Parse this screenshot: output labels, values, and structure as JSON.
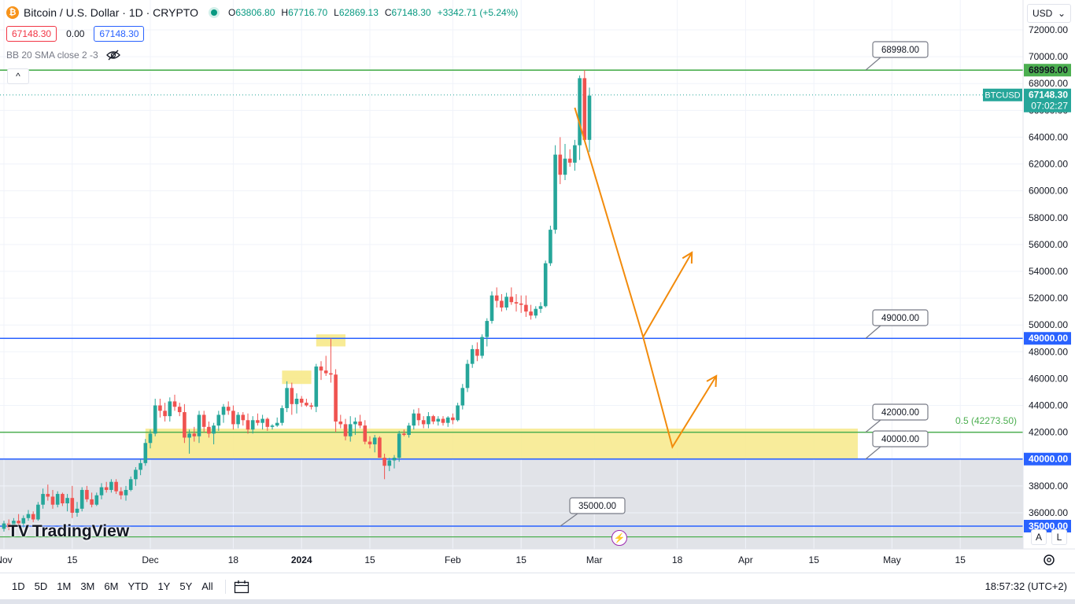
{
  "header": {
    "symbol": "Bitcoin / U.S. Dollar · 1D · CRYPTO",
    "coin_glyph": "₿",
    "ohlc": [
      {
        "label": "O",
        "value": "63806.80"
      },
      {
        "label": "H",
        "value": "67716.70"
      },
      {
        "label": "L",
        "value": "62869.13"
      },
      {
        "label": "C",
        "value": "67148.30"
      }
    ],
    "change": "+3342.71 (+5.24%)"
  },
  "trade": {
    "sell": "67148.30",
    "spread": "0.00",
    "buy": "67148.30"
  },
  "indicator": {
    "label": "BB 20 SMA close 2 -3"
  },
  "collapse_glyph": "^",
  "currency": {
    "value": "USD",
    "chevron": "⌄"
  },
  "axis_buttons": {
    "auto": "A",
    "log": "L"
  },
  "logo": {
    "text": "TradingView",
    "glyph": "TV"
  },
  "flash_glyph": "⚡",
  "bottom_bar": {
    "ranges": [
      "1D",
      "5D",
      "1M",
      "3M",
      "6M",
      "YTD",
      "1Y",
      "5Y",
      "All"
    ],
    "clock": "18:57:32 (UTC+2)"
  },
  "colors": {
    "up": "#26a69a",
    "down": "#ef5350",
    "accent": "#2962ff",
    "zone": "#f7e98a",
    "arrow": "#f28b0c"
  },
  "chart_data": {
    "type": "candlestick",
    "ylim": [
      35000,
      72000
    ],
    "y_ticks": [
      36000,
      38000,
      40000,
      42000,
      44000,
      46000,
      48000,
      50000,
      52000,
      54000,
      56000,
      58000,
      60000,
      62000,
      64000,
      66000,
      68000,
      70000,
      72000
    ],
    "y_tick_labels": [
      "36000.00",
      "38000.00",
      "40000.00",
      "42000.00",
      "44000.00",
      "46000.00",
      "48000.00",
      "50000.00",
      "52000.00",
      "54000.00",
      "56000.00",
      "58000.00",
      "60000.00",
      "62000.00",
      "64000.00",
      "66000.00",
      "68000.00",
      "70000.00",
      "72000.00"
    ],
    "x_ticks": [
      {
        "day": 0,
        "label": "Nov"
      },
      {
        "day": 14,
        "label": "15"
      },
      {
        "day": 30,
        "label": "Dec"
      },
      {
        "day": 47,
        "label": "18"
      },
      {
        "day": 61,
        "label": "2024"
      },
      {
        "day": 75,
        "label": "15"
      },
      {
        "day": 92,
        "label": "Feb"
      },
      {
        "day": 106,
        "label": "15"
      },
      {
        "day": 121,
        "label": "Mar"
      },
      {
        "day": 138,
        "label": "18"
      },
      {
        "day": 152,
        "label": "Apr"
      },
      {
        "day": 166,
        "label": "15"
      },
      {
        "day": 182,
        "label": "May"
      },
      {
        "day": 196,
        "label": "15"
      }
    ],
    "candles": [
      [
        34800,
        35400,
        34600,
        35200
      ],
      [
        35200,
        35500,
        34700,
        34900
      ],
      [
        34900,
        35600,
        34800,
        35400
      ],
      [
        35400,
        35900,
        35000,
        35200
      ],
      [
        35200,
        35800,
        34900,
        35600
      ],
      [
        35600,
        36200,
        35400,
        35900
      ],
      [
        35900,
        36100,
        35300,
        35500
      ],
      [
        35500,
        36800,
        35400,
        36600
      ],
      [
        36600,
        37800,
        36300,
        37400
      ],
      [
        37400,
        38100,
        36900,
        37200
      ],
      [
        37200,
        37700,
        36300,
        36600
      ],
      [
        36600,
        37600,
        36400,
        37400
      ],
      [
        37400,
        37500,
        36500,
        36700
      ],
      [
        36700,
        37400,
        36100,
        37100
      ],
      [
        37100,
        38000,
        35600,
        36000
      ],
      [
        36000,
        36800,
        35700,
        36300
      ],
      [
        36300,
        37900,
        36100,
        37700
      ],
      [
        37700,
        38000,
        36800,
        37000
      ],
      [
        37000,
        37500,
        36400,
        36600
      ],
      [
        36600,
        37500,
        36500,
        37300
      ],
      [
        37300,
        38200,
        37000,
        37900
      ],
      [
        37900,
        38300,
        37500,
        37700
      ],
      [
        37700,
        38500,
        37500,
        38300
      ],
      [
        38300,
        38500,
        37400,
        37600
      ],
      [
        37600,
        37900,
        37000,
        37300
      ],
      [
        37300,
        38000,
        36900,
        37700
      ],
      [
        37700,
        38700,
        37600,
        38500
      ],
      [
        38500,
        39400,
        38000,
        39200
      ],
      [
        39200,
        40000,
        38800,
        39700
      ],
      [
        39700,
        41500,
        39500,
        41200
      ],
      [
        41200,
        42200,
        40800,
        41900
      ],
      [
        41900,
        44500,
        41700,
        44000
      ],
      [
        44000,
        44500,
        43100,
        43600
      ],
      [
        43600,
        44200,
        42800,
        43200
      ],
      [
        43200,
        44600,
        42800,
        44300
      ],
      [
        44300,
        44800,
        43600,
        43900
      ],
      [
        43900,
        44200,
        43200,
        43500
      ],
      [
        43500,
        44100,
        41200,
        41600
      ],
      [
        41600,
        42200,
        40400,
        41900
      ],
      [
        41900,
        42400,
        41300,
        41700
      ],
      [
        41700,
        43600,
        41200,
        43300
      ],
      [
        43300,
        43600,
        42000,
        42400
      ],
      [
        42400,
        42800,
        41600,
        41900
      ],
      [
        41900,
        42700,
        41100,
        42500
      ],
      [
        42500,
        43600,
        42100,
        43300
      ],
      [
        43300,
        44100,
        42700,
        43900
      ],
      [
        43900,
        44300,
        43300,
        43600
      ],
      [
        43600,
        44000,
        42200,
        42600
      ],
      [
        42600,
        43500,
        42300,
        43300
      ],
      [
        43300,
        43500,
        42500,
        42900
      ],
      [
        42900,
        43400,
        41900,
        42200
      ],
      [
        42200,
        43200,
        41900,
        42900
      ],
      [
        42900,
        43400,
        42500,
        42700
      ],
      [
        42700,
        43300,
        42200,
        43000
      ],
      [
        43000,
        43100,
        42100,
        42400
      ],
      [
        42400,
        42600,
        42200,
        42500
      ],
      [
        42500,
        43100,
        42400,
        42700
      ],
      [
        42700,
        44000,
        42500,
        43800
      ],
      [
        43800,
        45800,
        43500,
        45300
      ],
      [
        45300,
        45700,
        43300,
        44100
      ],
      [
        44100,
        44900,
        43400,
        44500
      ],
      [
        44500,
        44700,
        43900,
        44200
      ],
      [
        44200,
        44500,
        43900,
        44000
      ],
      [
        44000,
        44200,
        43700,
        43900
      ],
      [
        43900,
        47100,
        43500,
        46900
      ],
      [
        46900,
        47300,
        45900,
        46600
      ],
      [
        46600,
        47700,
        46200,
        46400
      ],
      [
        46400,
        49000,
        45700,
        46300
      ],
      [
        46300,
        46700,
        42000,
        42800
      ],
      [
        42800,
        43300,
        42300,
        42600
      ],
      [
        42600,
        43000,
        41400,
        41700
      ],
      [
        41700,
        43200,
        41300,
        42600
      ],
      [
        42600,
        43100,
        41800,
        42800
      ],
      [
        42800,
        43300,
        42300,
        42500
      ],
      [
        42500,
        42900,
        41100,
        41300
      ],
      [
        41300,
        41700,
        40800,
        41100
      ],
      [
        41100,
        41800,
        40500,
        41600
      ],
      [
        41600,
        41700,
        40400,
        40100
      ],
      [
        40100,
        40400,
        38500,
        39500
      ],
      [
        39500,
        40100,
        39100,
        39900
      ],
      [
        39900,
        40300,
        39300,
        40100
      ],
      [
        40100,
        42100,
        39800,
        41900
      ],
      [
        41900,
        42200,
        41700,
        41800
      ],
      [
        41800,
        42700,
        41600,
        42500
      ],
      [
        42500,
        43700,
        42200,
        43400
      ],
      [
        43400,
        43800,
        42500,
        42900
      ],
      [
        42900,
        43200,
        42300,
        42600
      ],
      [
        42600,
        43500,
        42300,
        43200
      ],
      [
        43200,
        43300,
        42600,
        42800
      ],
      [
        42800,
        43200,
        42500,
        43000
      ],
      [
        43000,
        43200,
        42500,
        42700
      ],
      [
        42700,
        43200,
        42400,
        43100
      ],
      [
        43100,
        43400,
        42600,
        42900
      ],
      [
        42900,
        44200,
        42800,
        44000
      ],
      [
        44000,
        45600,
        43700,
        45300
      ],
      [
        45300,
        47400,
        45000,
        47100
      ],
      [
        47100,
        48500,
        46800,
        48200
      ],
      [
        48200,
        48700,
        47300,
        47700
      ],
      [
        47700,
        49300,
        47500,
        49100
      ],
      [
        49100,
        50500,
        48400,
        50300
      ],
      [
        50300,
        52500,
        50100,
        52200
      ],
      [
        52200,
        52800,
        51300,
        51800
      ],
      [
        51800,
        52300,
        51000,
        51300
      ],
      [
        51300,
        52400,
        51100,
        52100
      ],
      [
        52100,
        52800,
        51500,
        51700
      ],
      [
        51700,
        52300,
        51000,
        51600
      ],
      [
        51600,
        52200,
        50900,
        51500
      ],
      [
        51500,
        52200,
        50600,
        51000
      ],
      [
        51000,
        51500,
        50400,
        50700
      ],
      [
        50700,
        51400,
        50500,
        51200
      ],
      [
        51200,
        51700,
        50900,
        51400
      ],
      [
        51400,
        54800,
        51300,
        54600
      ],
      [
        54600,
        57400,
        54400,
        57100
      ],
      [
        57100,
        63400,
        56800,
        62700
      ],
      [
        62700,
        64000,
        60500,
        61200
      ],
      [
        61200,
        63500,
        60800,
        62400
      ],
      [
        62400,
        63100,
        61800,
        62100
      ],
      [
        62100,
        63800,
        61500,
        63400
      ],
      [
        63400,
        68600,
        62300,
        68400
      ],
      [
        68400,
        69000,
        63700,
        63800
      ],
      [
        63800,
        67700,
        62900,
        67100
      ]
    ],
    "levels": [
      {
        "value": 68998,
        "label": "68998.00",
        "color": "#4caf50"
      },
      {
        "value": 49000,
        "label": "49000.00",
        "color": "#2962ff"
      },
      {
        "value": 42000,
        "label": "42000.00",
        "color": "#4caf50"
      },
      {
        "value": 40000,
        "label": "40000.00",
        "color": "#2962ff"
      },
      {
        "value": 35000,
        "label": "35000.00",
        "color": "#2962ff"
      }
    ],
    "fib": {
      "label": "0.5 (42273.50)",
      "value": 42273.5
    },
    "zone": {
      "from_day": 29,
      "to_day": 175,
      "low": 40000,
      "high": 42273.5
    },
    "highlights": [
      {
        "from_day": 57,
        "to_day": 63,
        "low": 45600,
        "high": 46600
      },
      {
        "from_day": 64,
        "to_day": 70,
        "low": 48400,
        "high": 49300
      }
    ],
    "current_price": {
      "tag": "BTCUSD",
      "value": "67148.30",
      "countdown": "07:02:27",
      "level": 67148.3
    },
    "projection": [
      {
        "points": [
          [
            117,
            66200
          ],
          [
            131,
            49100
          ],
          [
            141,
            55400
          ]
        ]
      },
      {
        "points": [
          [
            131,
            49100
          ],
          [
            137,
            40900
          ],
          [
            146,
            46200
          ]
        ]
      }
    ],
    "axis_price_labels": [
      {
        "value": 68998,
        "label": "68998.00",
        "bg": "#4caf50",
        "fg": "#131722"
      },
      {
        "value": 49000,
        "label": "49000.00",
        "bg": "#2962ff",
        "fg": "#ffffff"
      },
      {
        "value": 40000,
        "label": "40000.00",
        "bg": "#2962ff",
        "fg": "#ffffff"
      },
      {
        "value": 35000,
        "label": "35000.00",
        "bg": "#2962ff",
        "fg": "#ffffff"
      }
    ]
  }
}
